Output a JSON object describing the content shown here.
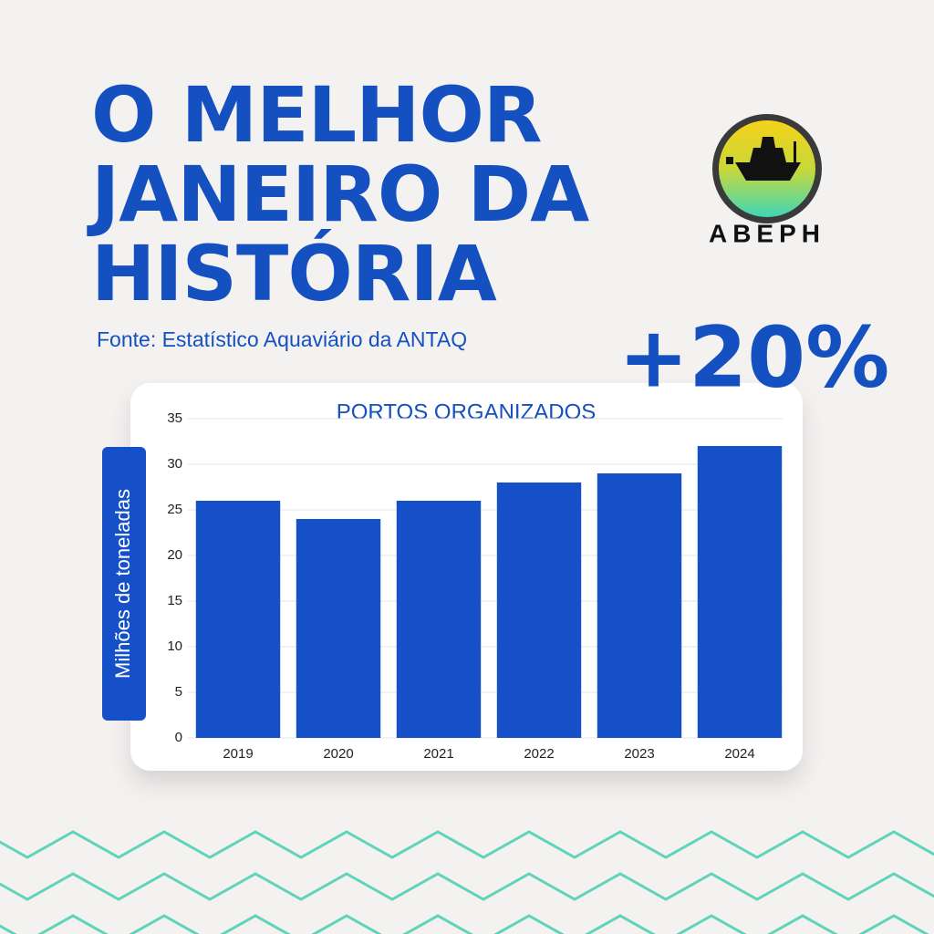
{
  "headline": [
    "O MELHOR",
    "JANEIRO DA",
    "HISTÓRIA"
  ],
  "source": "Fonte: Estatístico Aquaviário da ANTAQ",
  "highlight": "+20%",
  "logo": "ABEPH",
  "chart_data": {
    "type": "bar",
    "title": "PORTOS ORGANIZADOS",
    "y_label": "Milhões de toneladas",
    "categories": [
      "2019",
      "2020",
      "2021",
      "2022",
      "2023",
      "2024"
    ],
    "values": [
      26,
      24,
      26,
      28,
      29,
      32
    ],
    "color": "#1550c8",
    "ylim": [
      0,
      35
    ],
    "yticks": [
      0,
      5,
      10,
      15,
      20,
      25,
      30,
      35
    ],
    "grid": true
  }
}
